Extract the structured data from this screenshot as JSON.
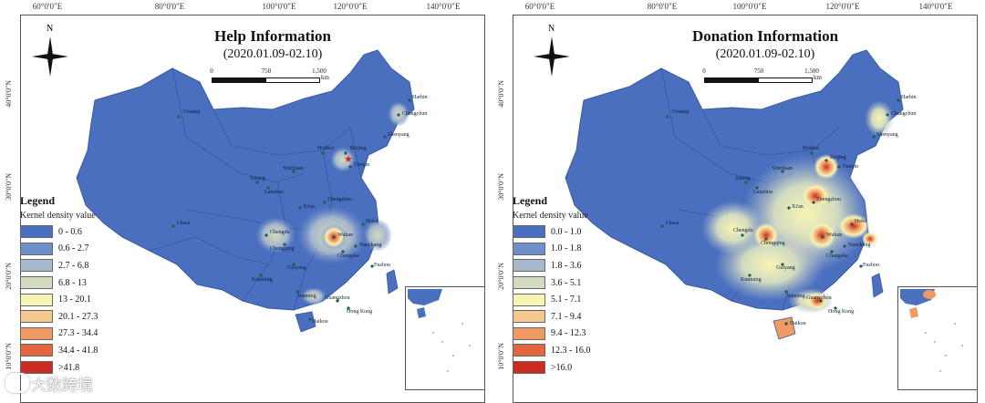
{
  "graticule": {
    "lon_labels": [
      "60°0'0\"E",
      "80°0'0\"E",
      "100°0'0\"E",
      "120°0'0\"E",
      "140°0'0\"E"
    ],
    "lat_labels": [
      "40°0'0\"N",
      "30°0'0\"N",
      "20°0'0\"N",
      "10°0'0\"N"
    ]
  },
  "compass": {
    "label": "N"
  },
  "scale_bar": {
    "ticks": [
      "0",
      "750",
      "1,500"
    ],
    "unit": "km"
  },
  "legend": {
    "title": "Legend",
    "subtitle": "Kernel density value"
  },
  "panels": [
    {
      "id": "help",
      "title": "Help Information",
      "subtitle": "(2020.01.09-02.10)",
      "classes": [
        {
          "label": "0 - 0.6",
          "color": "#4a6fbf"
        },
        {
          "label": "0.6 - 2.7",
          "color": "#6f8fc8"
        },
        {
          "label": "2.7 - 6.8",
          "color": "#a7b7cc"
        },
        {
          "label": "6.8 - 13",
          "color": "#d2dbc0"
        },
        {
          "label": "13 - 20.1",
          "color": "#f7f4b4"
        },
        {
          "label": "20.1 - 27.3",
          "color": "#f5c98e"
        },
        {
          "label": "27.3 - 34.4",
          "color": "#ef9a62"
        },
        {
          "label": "34.4 - 41.8",
          "color": "#e2663f"
        },
        {
          "label": ">41.8",
          "color": "#cc2b22"
        }
      ],
      "cities": [
        "Urumqi",
        "Harbin",
        "Changchun",
        "Shenyang",
        "Hohhot",
        "Beijing",
        "Tianjin",
        "Yinchuan",
        "Xining",
        "Lanzhou",
        "Xi'an",
        "Zhengzhou",
        "Chengdu",
        "Chongqing",
        "Wuhan",
        "Hefei",
        "Changsha",
        "Nanchang",
        "Guiyang",
        "Kunming",
        "Lhasa",
        "Nanning",
        "Guangzhou",
        "Hong Kong",
        "Haikou",
        "Fuzhou"
      ]
    },
    {
      "id": "donation",
      "title": "Donation Information",
      "subtitle": "(2020.01.09-02.10)",
      "classes": [
        {
          "label": "0.0 - 1.0",
          "color": "#4a6fbf"
        },
        {
          "label": "1.0 - 1.8",
          "color": "#6f8fc8"
        },
        {
          "label": "1.8 - 3.6",
          "color": "#a7b7cc"
        },
        {
          "label": "3.6 - 5.1",
          "color": "#d2dbc0"
        },
        {
          "label": "5.1 - 7.1",
          "color": "#f7f4b4"
        },
        {
          "label": "7.1 - 9.4",
          "color": "#f5c98e"
        },
        {
          "label": "9.4 - 12.3",
          "color": "#ef9a62"
        },
        {
          "label": "12.3 - 16.0",
          "color": "#e2663f"
        },
        {
          "label": ">16.0",
          "color": "#cc2b22"
        }
      ],
      "cities": [
        "Urumqi",
        "Harbin",
        "Changchun",
        "Shenyang",
        "Hohhot",
        "Beijing",
        "Tianjin",
        "Yinchuan",
        "Xining",
        "Lanzhou",
        "Xi'an",
        "Zhengzhou",
        "Chengdu",
        "Chongqing",
        "Wuhan",
        "Hefei",
        "Changsha",
        "Nanchang",
        "Guiyang",
        "Kunming",
        "Lhasa",
        "Nanning",
        "Guangzhou",
        "Hong Kong",
        "Haikou",
        "Fuzhou"
      ]
    }
  ],
  "watermark": "大数跨境"
}
